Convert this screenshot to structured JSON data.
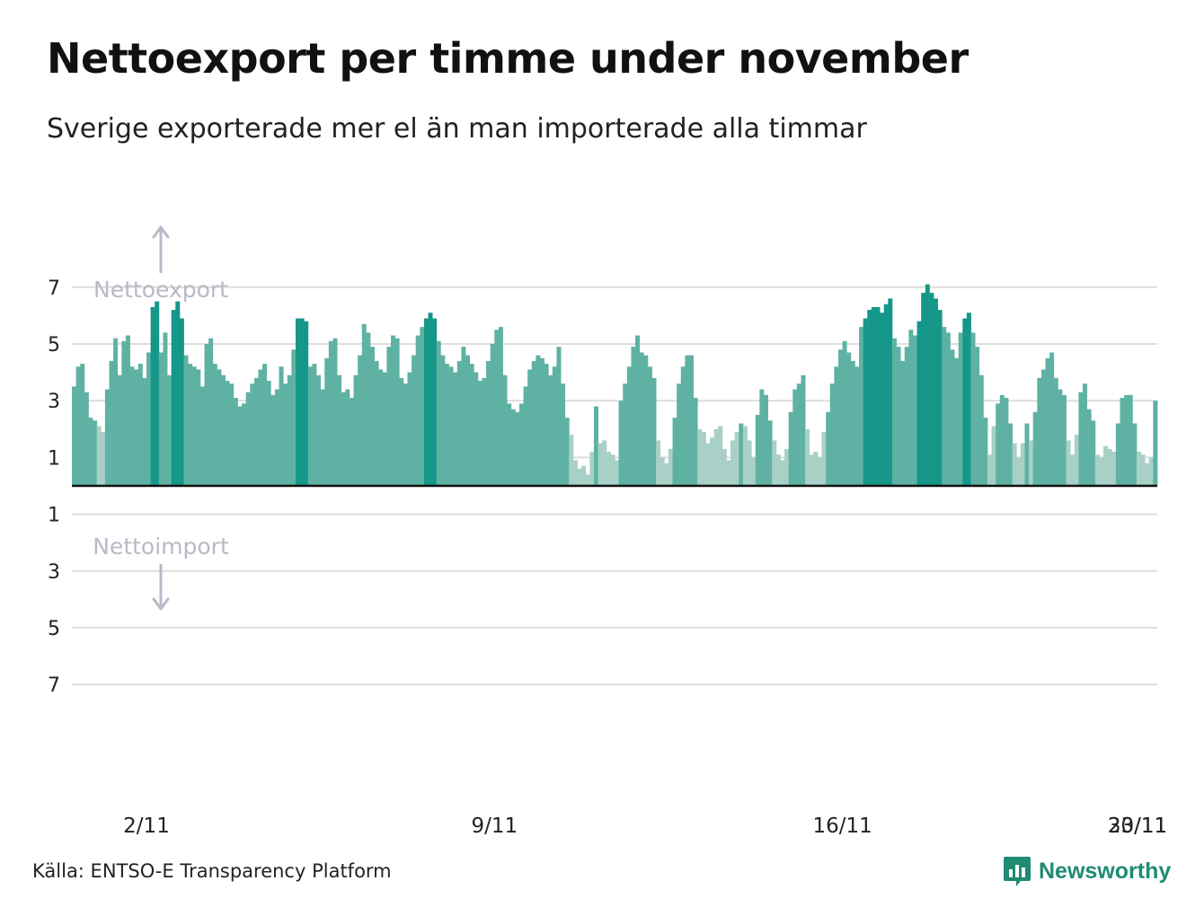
{
  "title": "Nettoexport per timme under november",
  "subtitle": "Sverige exporterade mer el än man importerade alla timmar",
  "source": "Källa: ENTSO-E Transparency Platform",
  "brand": {
    "name": "Newsworthy",
    "icon": "bar-chart-speech-bubble-icon"
  },
  "colors": {
    "bar_light": "#a9d0c6",
    "bar_mid": "#5fb2a3",
    "bar_dark": "#15978a",
    "baseline": "#111111",
    "grid": "#dddddd",
    "annotation": "#b9b9c7",
    "brand": "#1f8b73"
  },
  "chart_data": {
    "type": "bar",
    "title": "Nettoexport per timme under november",
    "subtitle": "Sverige exporterade mer el än man importerade alla timmar",
    "xlabel": "",
    "ylabel": "",
    "ylim": [
      -7.5,
      7.5
    ],
    "y_ticks": [
      {
        "value": 7,
        "label": "7"
      },
      {
        "value": 5,
        "label": "5"
      },
      {
        "value": 3,
        "label": "3"
      },
      {
        "value": 1,
        "label": "1"
      },
      {
        "value": -1,
        "label": "1"
      },
      {
        "value": -3,
        "label": "3"
      },
      {
        "value": -5,
        "label": "5"
      },
      {
        "value": -7,
        "label": "7"
      }
    ],
    "x_ticks": [
      {
        "day": 2,
        "label": "2/11"
      },
      {
        "day": 9,
        "label": "9/11"
      },
      {
        "day": 16,
        "label": "16/11"
      },
      {
        "day": 23,
        "label": "23/11"
      },
      {
        "day": 30,
        "label": "30/11"
      }
    ],
    "annotations": {
      "export": "Nettoexport",
      "import": "Nettoimport"
    },
    "hours_per_point": 2,
    "series": [
      {
        "name": "Nettoexport",
        "start": "1/11 00:00",
        "values": [
          3.5,
          4.2,
          4.3,
          3.3,
          2.4,
          2.3,
          2.1,
          1.9,
          3.4,
          4.4,
          5.2,
          3.9,
          5.1,
          5.3,
          4.2,
          4.1,
          4.3,
          3.8,
          4.7,
          6.3,
          6.5,
          4.7,
          5.4,
          3.9,
          6.2,
          6.5,
          5.9,
          4.6,
          4.3,
          4.2,
          4.1,
          3.5,
          5.0,
          5.2,
          4.3,
          4.1,
          3.9,
          3.7,
          3.6,
          3.1,
          2.8,
          2.9,
          3.3,
          3.6,
          3.8,
          4.1,
          4.3,
          3.7,
          3.2,
          3.4,
          4.2,
          3.6,
          3.9,
          4.8,
          5.9,
          5.9,
          5.8,
          4.2,
          4.3,
          3.9,
          3.4,
          4.5,
          5.1,
          5.2,
          3.9,
          3.3,
          3.4,
          3.1,
          3.9,
          4.6,
          5.7,
          5.4,
          4.9,
          4.4,
          4.1,
          4.0,
          4.9,
          5.3,
          5.2,
          3.8,
          3.6,
          4.0,
          4.6,
          5.3,
          5.6,
          5.9,
          6.1,
          5.9,
          5.1,
          4.6,
          4.3,
          4.2,
          4.0,
          4.4,
          4.9,
          4.6,
          4.3,
          4.0,
          3.7,
          3.8,
          4.4,
          5.0,
          5.5,
          5.6,
          3.9,
          2.9,
          2.7,
          2.6,
          2.9,
          3.5,
          4.1,
          4.4,
          4.6,
          4.5,
          4.3,
          3.9,
          4.2,
          4.9,
          3.6,
          2.4,
          1.8,
          0.9,
          0.6,
          0.7,
          0.4,
          1.2,
          2.8,
          1.5,
          1.6,
          1.2,
          1.1,
          0.9,
          3.0,
          3.6,
          4.2,
          4.9,
          5.3,
          4.7,
          4.6,
          4.2,
          3.8,
          1.6,
          1.0,
          0.8,
          1.3,
          2.4,
          3.6,
          4.2,
          4.6,
          4.6,
          3.1,
          2.0,
          1.9,
          1.5,
          1.7,
          2.0,
          2.1,
          1.3,
          0.9,
          1.6,
          1.9,
          2.2,
          2.1,
          1.6,
          1.0,
          2.5,
          3.4,
          3.2,
          2.3,
          1.6,
          1.1,
          0.9,
          1.3,
          2.6,
          3.4,
          3.6,
          3.9,
          2.0,
          1.1,
          1.2,
          1.0,
          1.9,
          2.6,
          3.6,
          4.2,
          4.8,
          5.1,
          4.7,
          4.4,
          4.2,
          5.6,
          5.9,
          6.2,
          6.3,
          6.3,
          6.1,
          6.4,
          6.6,
          5.2,
          4.9,
          4.4,
          4.9,
          5.5,
          5.3,
          5.8,
          6.8,
          7.1,
          6.8,
          6.6,
          6.2,
          5.6,
          5.4,
          4.8,
          4.5,
          5.4,
          5.9,
          6.1,
          5.4,
          4.9,
          3.9,
          2.4,
          1.1,
          2.1,
          2.9,
          3.2,
          3.1,
          2.2,
          1.5,
          1.0,
          1.5,
          2.2,
          1.6,
          2.6,
          3.8,
          4.1,
          4.5,
          4.7,
          3.8,
          3.4,
          3.2,
          1.6,
          1.1,
          1.8,
          3.3,
          3.6,
          2.7,
          2.3,
          1.1,
          1.0,
          1.4,
          1.3,
          1.2,
          2.2,
          3.1,
          3.2,
          3.2,
          2.2,
          1.2,
          1.1,
          0.8,
          1.0,
          3.0
        ]
      }
    ]
  }
}
